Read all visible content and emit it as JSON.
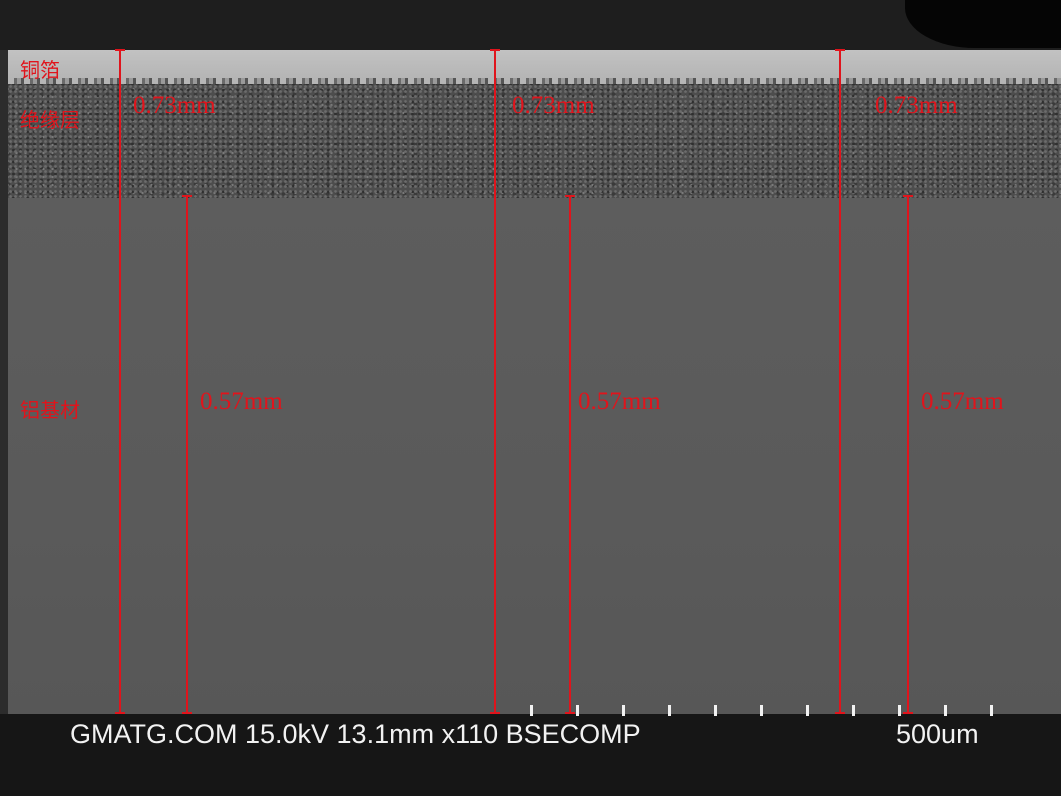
{
  "image": {
    "layers": {
      "copper_label": "铜箔",
      "insulation_label": "绝缘层",
      "aluminum_label": "铝基材"
    },
    "measurements": {
      "total_label": "0.73mm",
      "base_label": "0.57mm"
    },
    "info_bar": {
      "text": "GMATG.COM 15.0kV 13.1mm x110 BSECOMP",
      "scale_label": "500um"
    },
    "colors": {
      "annotation": "#e0141c",
      "info_text": "#f2f2f2"
    }
  }
}
